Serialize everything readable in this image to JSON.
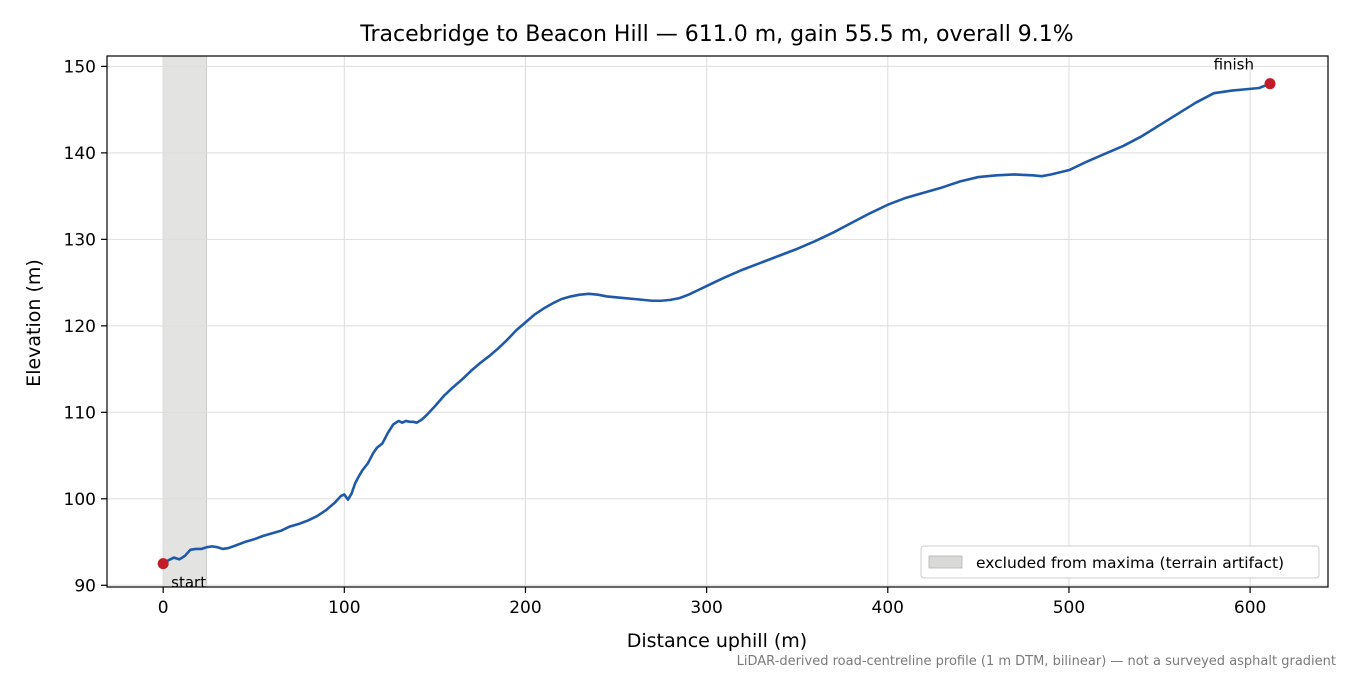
{
  "chart_data": {
    "type": "line",
    "title": "Tracebridge to Beacon Hill — 611.0 m, gain 55.5 m, overall 9.1%",
    "xlabel": "Distance uphill (m)",
    "ylabel": "Elevation (m)",
    "xlim": [
      -31,
      643
    ],
    "ylim": [
      89.8,
      151.2
    ],
    "xticks": [
      0,
      100,
      200,
      300,
      400,
      500,
      600
    ],
    "yticks": [
      90,
      100,
      110,
      120,
      130,
      140,
      150
    ],
    "grid": true,
    "excluded_span": [
      0,
      24
    ],
    "legend": {
      "position": "lower-right",
      "label": "excluded from maxima (terrain artifact)"
    },
    "footnote": "LiDAR-derived road-centreline profile (1 m DTM, bilinear) — not a surveyed asphalt gradient",
    "colors": {
      "line": "#1f5aaa",
      "marker": "#c21d26",
      "band": "#d9d9d7"
    },
    "endpoints": [
      {
        "label": "start",
        "x": 0,
        "y": 92.5
      },
      {
        "label": "finish",
        "x": 611,
        "y": 148.0
      }
    ],
    "series": [
      {
        "x": [
          0,
          3,
          6,
          9,
          12,
          15,
          18,
          21,
          24,
          27,
          30,
          33,
          36,
          40,
          45,
          50,
          55,
          60,
          65,
          70,
          75,
          80,
          85,
          90,
          95,
          98,
          100,
          102,
          104,
          106,
          108,
          110,
          113,
          116,
          118,
          121,
          124,
          127,
          130,
          132,
          134,
          136,
          138,
          140,
          143,
          146,
          150,
          155,
          160,
          165,
          170,
          175,
          180,
          185,
          190,
          195,
          200,
          205,
          210,
          215,
          220,
          225,
          230,
          235,
          240,
          245,
          250,
          255,
          260,
          265,
          270,
          275,
          280,
          285,
          290,
          295,
          300,
          305,
          310,
          320,
          330,
          340,
          350,
          360,
          370,
          380,
          390,
          400,
          410,
          420,
          430,
          440,
          450,
          460,
          470,
          480,
          485,
          490,
          500,
          510,
          520,
          530,
          540,
          550,
          560,
          570,
          580,
          590,
          600,
          605,
          611
        ],
        "y": [
          92.5,
          92.9,
          93.2,
          93.0,
          93.4,
          94.1,
          94.2,
          94.2,
          94.4,
          94.5,
          94.4,
          94.2,
          94.3,
          94.6,
          95.0,
          95.3,
          95.7,
          96.0,
          96.3,
          96.8,
          97.1,
          97.5,
          98.0,
          98.7,
          99.6,
          100.3,
          100.5,
          99.9,
          100.6,
          101.8,
          102.6,
          103.3,
          104.1,
          105.3,
          105.9,
          106.4,
          107.6,
          108.6,
          109.0,
          108.8,
          109.0,
          108.9,
          108.9,
          108.8,
          109.2,
          109.8,
          110.7,
          111.9,
          112.9,
          113.8,
          114.8,
          115.7,
          116.5,
          117.4,
          118.4,
          119.5,
          120.4,
          121.3,
          122.0,
          122.6,
          123.1,
          123.4,
          123.6,
          123.7,
          123.6,
          123.4,
          123.3,
          123.2,
          123.1,
          123.0,
          122.9,
          122.9,
          123.0,
          123.2,
          123.6,
          124.1,
          124.6,
          125.1,
          125.6,
          126.5,
          127.3,
          128.1,
          128.9,
          129.8,
          130.8,
          131.9,
          133.0,
          134.0,
          134.8,
          135.4,
          136.0,
          136.7,
          137.2,
          137.4,
          137.5,
          137.4,
          137.3,
          137.5,
          138.0,
          139.0,
          139.9,
          140.8,
          141.9,
          143.2,
          144.5,
          145.8,
          146.9,
          147.2,
          147.4,
          147.5,
          148.0
        ]
      }
    ]
  }
}
